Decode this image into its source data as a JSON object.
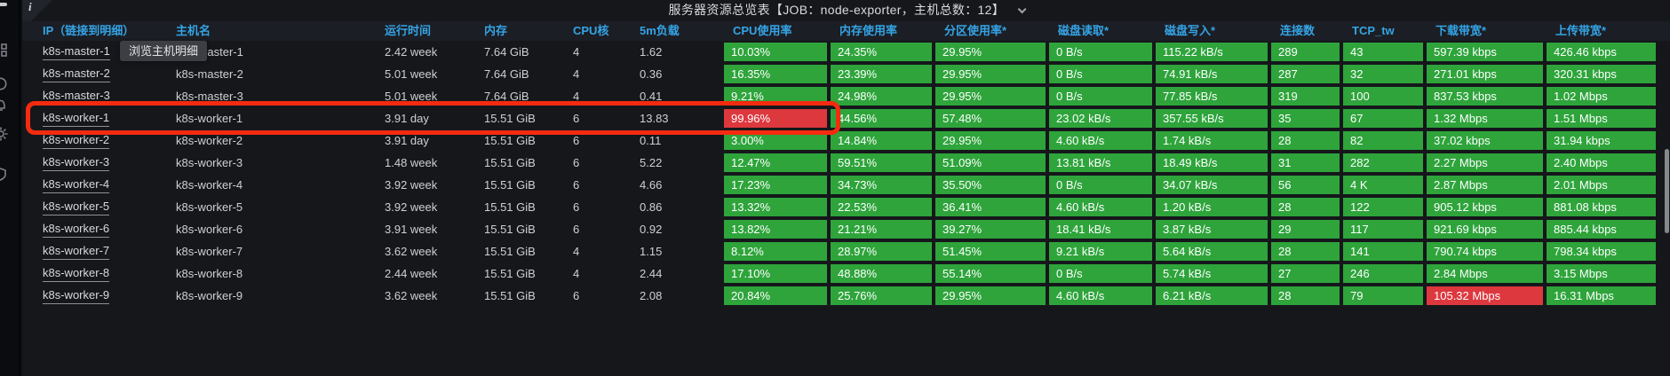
{
  "sidebar": {
    "icons": [
      "dashboards-icon",
      "explore-icon",
      "alerting-icon",
      "settings-icon",
      "shield-icon"
    ]
  },
  "panel": {
    "info_icon": "i",
    "title": "服务器资源总览表【JOB：node-exporter，主机总数：12】",
    "title_caret_icon": "chevron-down"
  },
  "tooltip": {
    "text": "浏览主机明细"
  },
  "table": {
    "columns": [
      "IP（链接到明细）",
      "主机名",
      "运行时间",
      "内存",
      "CPU核",
      "5m负载",
      "CPU使用率",
      "内存使用率",
      "分区使用率*",
      "磁盘读取*",
      "磁盘写入*",
      "连接数",
      "TCP_tw",
      "下载带宽*",
      "上传带宽*"
    ],
    "rows": [
      {
        "ip": "k8s-master-1",
        "values": [
          "k8s-master-1",
          "2.42 week",
          "7.64 GiB",
          "4",
          "1.62"
        ],
        "badges": [
          [
            "10.03%",
            "g"
          ],
          [
            "24.35%",
            "g"
          ],
          [
            "29.95%",
            "g"
          ],
          [
            "0 B/s",
            "g"
          ],
          [
            "115.22 kB/s",
            "g"
          ],
          [
            "289",
            "g"
          ],
          [
            "43",
            "g"
          ],
          [
            "597.39 kbps",
            "g"
          ],
          [
            "426.46 kbps",
            "g"
          ]
        ]
      },
      {
        "ip": "k8s-master-2",
        "values": [
          "k8s-master-2",
          "5.01 week",
          "7.64 GiB",
          "4",
          "0.36"
        ],
        "badges": [
          [
            "16.35%",
            "g"
          ],
          [
            "23.39%",
            "g"
          ],
          [
            "29.95%",
            "g"
          ],
          [
            "0 B/s",
            "g"
          ],
          [
            "74.91 kB/s",
            "g"
          ],
          [
            "287",
            "g"
          ],
          [
            "32",
            "g"
          ],
          [
            "271.01 kbps",
            "g"
          ],
          [
            "320.31 kbps",
            "g"
          ]
        ]
      },
      {
        "ip": "k8s-master-3",
        "values": [
          "k8s-master-3",
          "5.01 week",
          "7.64 GiB",
          "4",
          "0.41"
        ],
        "badges": [
          [
            "9.21%",
            "g"
          ],
          [
            "24.98%",
            "g"
          ],
          [
            "29.95%",
            "g"
          ],
          [
            "0 B/s",
            "g"
          ],
          [
            "77.85 kB/s",
            "g"
          ],
          [
            "319",
            "g"
          ],
          [
            "100",
            "g"
          ],
          [
            "837.53 kbps",
            "g"
          ],
          [
            "1.02 Mbps",
            "g"
          ]
        ]
      },
      {
        "ip": "k8s-worker-1",
        "values": [
          "k8s-worker-1",
          "3.91 day",
          "15.51 GiB",
          "6",
          "13.83"
        ],
        "badges": [
          [
            "99.96%",
            "r"
          ],
          [
            "44.56%",
            "g"
          ],
          [
            "57.48%",
            "g"
          ],
          [
            "23.02 kB/s",
            "g"
          ],
          [
            "357.55 kB/s",
            "g"
          ],
          [
            "35",
            "g"
          ],
          [
            "67",
            "g"
          ],
          [
            "1.32 Mbps",
            "g"
          ],
          [
            "1.51 Mbps",
            "g"
          ]
        ]
      },
      {
        "ip": "k8s-worker-2",
        "values": [
          "k8s-worker-2",
          "3.91 day",
          "15.51 GiB",
          "6",
          "0.11"
        ],
        "badges": [
          [
            "3.00%",
            "g"
          ],
          [
            "14.84%",
            "g"
          ],
          [
            "29.95%",
            "g"
          ],
          [
            "4.60 kB/s",
            "g"
          ],
          [
            "1.74 kB/s",
            "g"
          ],
          [
            "28",
            "g"
          ],
          [
            "82",
            "g"
          ],
          [
            "37.02 kbps",
            "g"
          ],
          [
            "31.94 kbps",
            "g"
          ]
        ]
      },
      {
        "ip": "k8s-worker-3",
        "values": [
          "k8s-worker-3",
          "1.48 week",
          "15.51 GiB",
          "6",
          "5.22"
        ],
        "badges": [
          [
            "12.47%",
            "g"
          ],
          [
            "59.51%",
            "g"
          ],
          [
            "51.09%",
            "g"
          ],
          [
            "13.81 kB/s",
            "g"
          ],
          [
            "18.49 kB/s",
            "g"
          ],
          [
            "31",
            "g"
          ],
          [
            "282",
            "g"
          ],
          [
            "2.27 Mbps",
            "g"
          ],
          [
            "2.40 Mbps",
            "g"
          ]
        ]
      },
      {
        "ip": "k8s-worker-4",
        "values": [
          "k8s-worker-4",
          "3.92 week",
          "15.51 GiB",
          "6",
          "4.66"
        ],
        "badges": [
          [
            "17.23%",
            "g"
          ],
          [
            "34.73%",
            "g"
          ],
          [
            "35.50%",
            "g"
          ],
          [
            "0 B/s",
            "g"
          ],
          [
            "34.07 kB/s",
            "g"
          ],
          [
            "56",
            "g"
          ],
          [
            "4 K",
            "g"
          ],
          [
            "2.87 Mbps",
            "g"
          ],
          [
            "2.01 Mbps",
            "g"
          ]
        ]
      },
      {
        "ip": "k8s-worker-5",
        "values": [
          "k8s-worker-5",
          "3.92 week",
          "15.51 GiB",
          "6",
          "0.86"
        ],
        "badges": [
          [
            "13.32%",
            "g"
          ],
          [
            "22.53%",
            "g"
          ],
          [
            "36.41%",
            "g"
          ],
          [
            "4.60 kB/s",
            "g"
          ],
          [
            "1.20 kB/s",
            "g"
          ],
          [
            "28",
            "g"
          ],
          [
            "122",
            "g"
          ],
          [
            "905.12 kbps",
            "g"
          ],
          [
            "881.08 kbps",
            "g"
          ]
        ]
      },
      {
        "ip": "k8s-worker-6",
        "values": [
          "k8s-worker-6",
          "3.91 week",
          "15.51 GiB",
          "6",
          "0.92"
        ],
        "badges": [
          [
            "13.82%",
            "g"
          ],
          [
            "21.21%",
            "g"
          ],
          [
            "39.27%",
            "g"
          ],
          [
            "18.41 kB/s",
            "g"
          ],
          [
            "3.87 kB/s",
            "g"
          ],
          [
            "29",
            "g"
          ],
          [
            "117",
            "g"
          ],
          [
            "921.69 kbps",
            "g"
          ],
          [
            "885.44 kbps",
            "g"
          ]
        ]
      },
      {
        "ip": "k8s-worker-7",
        "values": [
          "k8s-worker-7",
          "3.62 week",
          "15.51 GiB",
          "4",
          "1.15"
        ],
        "badges": [
          [
            "8.12%",
            "g"
          ],
          [
            "28.97%",
            "g"
          ],
          [
            "51.45%",
            "g"
          ],
          [
            "9.21 kB/s",
            "g"
          ],
          [
            "5.64 kB/s",
            "g"
          ],
          [
            "28",
            "g"
          ],
          [
            "141",
            "g"
          ],
          [
            "790.74 kbps",
            "g"
          ],
          [
            "798.34 kbps",
            "g"
          ]
        ]
      },
      {
        "ip": "k8s-worker-8",
        "values": [
          "k8s-worker-8",
          "2.44 week",
          "15.51 GiB",
          "4",
          "2.44"
        ],
        "badges": [
          [
            "17.10%",
            "g"
          ],
          [
            "48.88%",
            "g"
          ],
          [
            "55.14%",
            "g"
          ],
          [
            "0 B/s",
            "g"
          ],
          [
            "5.74 kB/s",
            "g"
          ],
          [
            "27",
            "g"
          ],
          [
            "246",
            "g"
          ],
          [
            "2.84 Mbps",
            "g"
          ],
          [
            "3.15 Mbps",
            "g"
          ]
        ]
      },
      {
        "ip": "k8s-worker-9",
        "values": [
          "k8s-worker-9",
          "3.62 week",
          "15.51 GiB",
          "6",
          "2.08"
        ],
        "badges": [
          [
            "20.84%",
            "g"
          ],
          [
            "25.76%",
            "g"
          ],
          [
            "29.95%",
            "g"
          ],
          [
            "4.60 kB/s",
            "g"
          ],
          [
            "6.21 kB/s",
            "g"
          ],
          [
            "28",
            "g"
          ],
          [
            "79",
            "g"
          ],
          [
            "105.32 Mbps",
            "r"
          ],
          [
            "16.31 Mbps",
            "g"
          ]
        ]
      }
    ]
  },
  "annotation": {
    "type": "highlight-box",
    "target_row": "k8s-worker-1"
  },
  "colors": {
    "header_text": "#35a4e6",
    "cell_green": "#2ea43b",
    "cell_red": "#dc383e",
    "annotation_red": "#f52b10",
    "panel_bg": "#15171b",
    "link_text": "#d8d9da"
  }
}
